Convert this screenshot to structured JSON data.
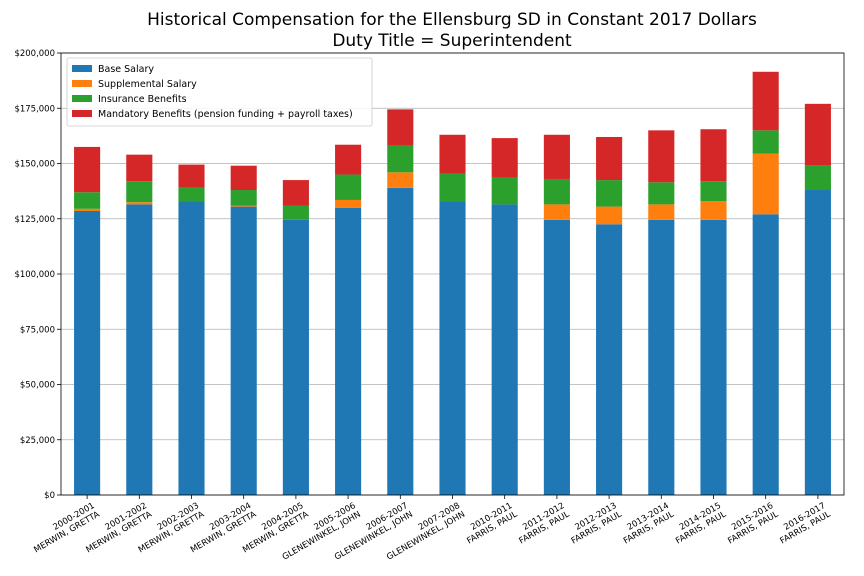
{
  "chart_data": {
    "type": "bar",
    "stacked": true,
    "title": "Historical Compensation for the Ellensburg SD in Constant 2017 Dollars",
    "subtitle": "Duty Title = Superintendent",
    "xlabel": "",
    "ylabel": "",
    "ylim": [
      0,
      200000
    ],
    "y_ticks": [
      0,
      25000,
      50000,
      75000,
      100000,
      125000,
      150000,
      175000,
      200000
    ],
    "y_tick_labels": [
      "$0",
      "$25,000",
      "$50,000",
      "$75,000",
      "$100,000",
      "$125,000",
      "$150,000",
      "$175,000",
      "$200,000"
    ],
    "grid": "horizontal",
    "legend_position": "top-left",
    "categories": [
      [
        "2000-2001",
        "MERWIN, GRETTA"
      ],
      [
        "2001-2002",
        "MERWIN, GRETTA"
      ],
      [
        "2002-2003",
        "MERWIN, GRETTA"
      ],
      [
        "2003-2004",
        "MERWIN, GRETTA"
      ],
      [
        "2004-2005",
        "MERWIN, GRETTA"
      ],
      [
        "2005-2006",
        "GLENEWINKEL, JOHN"
      ],
      [
        "2006-2007",
        "GLENEWINKEL, JOHN"
      ],
      [
        "2007-2008",
        "GLENEWINKEL, JOHN"
      ],
      [
        "2010-2011",
        "FARRIS, PAUL"
      ],
      [
        "2011-2012",
        "FARRIS, PAUL"
      ],
      [
        "2012-2013",
        "FARRIS, PAUL"
      ],
      [
        "2013-2014",
        "FARRIS, PAUL"
      ],
      [
        "2014-2015",
        "FARRIS, PAUL"
      ],
      [
        "2015-2016",
        "FARRIS, PAUL"
      ],
      [
        "2016-2017",
        "FARRIS, PAUL"
      ]
    ],
    "series": [
      {
        "name": "Base Salary",
        "color": "#1f77b4",
        "values": [
          128500,
          131500,
          133000,
          130500,
          124500,
          130000,
          139000,
          133000,
          131500,
          124500,
          122500,
          124500,
          124500,
          127000,
          138000
        ]
      },
      {
        "name": "Supplemental Salary",
        "color": "#ff7f0e",
        "values": [
          1000,
          1000,
          0,
          500,
          0,
          3500,
          7000,
          0,
          0,
          7000,
          8000,
          7000,
          8500,
          27500,
          0
        ]
      },
      {
        "name": "Insurance Benefits",
        "color": "#2ca02c",
        "values": [
          7500,
          9500,
          6000,
          7000,
          6500,
          11500,
          12000,
          12500,
          12000,
          11500,
          12000,
          10000,
          9000,
          10500,
          11000
        ]
      },
      {
        "name": "Mandatory Benefits (pension funding + payroll taxes)",
        "color": "#d62728",
        "values": [
          20500,
          12000,
          10500,
          11000,
          11500,
          13500,
          16500,
          17500,
          18000,
          20000,
          19500,
          23500,
          23500,
          26500,
          28000
        ]
      }
    ]
  }
}
